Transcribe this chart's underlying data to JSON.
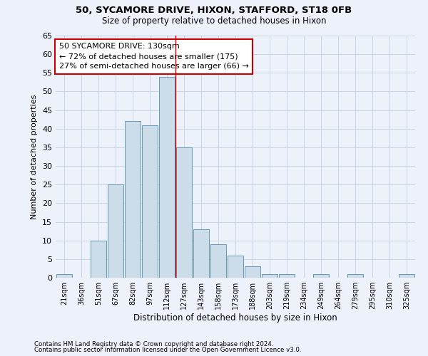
{
  "title1": "50, SYCAMORE DRIVE, HIXON, STAFFORD, ST18 0FB",
  "title2": "Size of property relative to detached houses in Hixon",
  "xlabel": "Distribution of detached houses by size in Hixon",
  "ylabel": "Number of detached properties",
  "footnote1": "Contains HM Land Registry data © Crown copyright and database right 2024.",
  "footnote2": "Contains public sector information licensed under the Open Government Licence v3.0.",
  "bar_labels": [
    "21sqm",
    "36sqm",
    "51sqm",
    "67sqm",
    "82sqm",
    "97sqm",
    "112sqm",
    "127sqm",
    "143sqm",
    "158sqm",
    "173sqm",
    "188sqm",
    "203sqm",
    "219sqm",
    "234sqm",
    "249sqm",
    "264sqm",
    "279sqm",
    "295sqm",
    "310sqm",
    "325sqm"
  ],
  "bar_values": [
    1,
    0,
    10,
    25,
    42,
    41,
    54,
    35,
    13,
    9,
    6,
    3,
    1,
    1,
    0,
    1,
    0,
    1,
    0,
    0,
    1
  ],
  "bar_color": "#ccdce8",
  "bar_edge_color": "#6699bb",
  "grid_color": "#c8d4e4",
  "background_color": "#edf2fa",
  "vline_x": 6.5,
  "vline_color": "#cc0000",
  "annotation_text": "50 SYCAMORE DRIVE: 130sqm\n← 72% of detached houses are smaller (175)\n27% of semi-detached houses are larger (66) →",
  "annotation_box_color": "#ffffff",
  "annotation_box_edge": "#cc0000",
  "ylim": [
    0,
    65
  ],
  "yticks": [
    0,
    5,
    10,
    15,
    20,
    25,
    30,
    35,
    40,
    45,
    50,
    55,
    60,
    65
  ]
}
